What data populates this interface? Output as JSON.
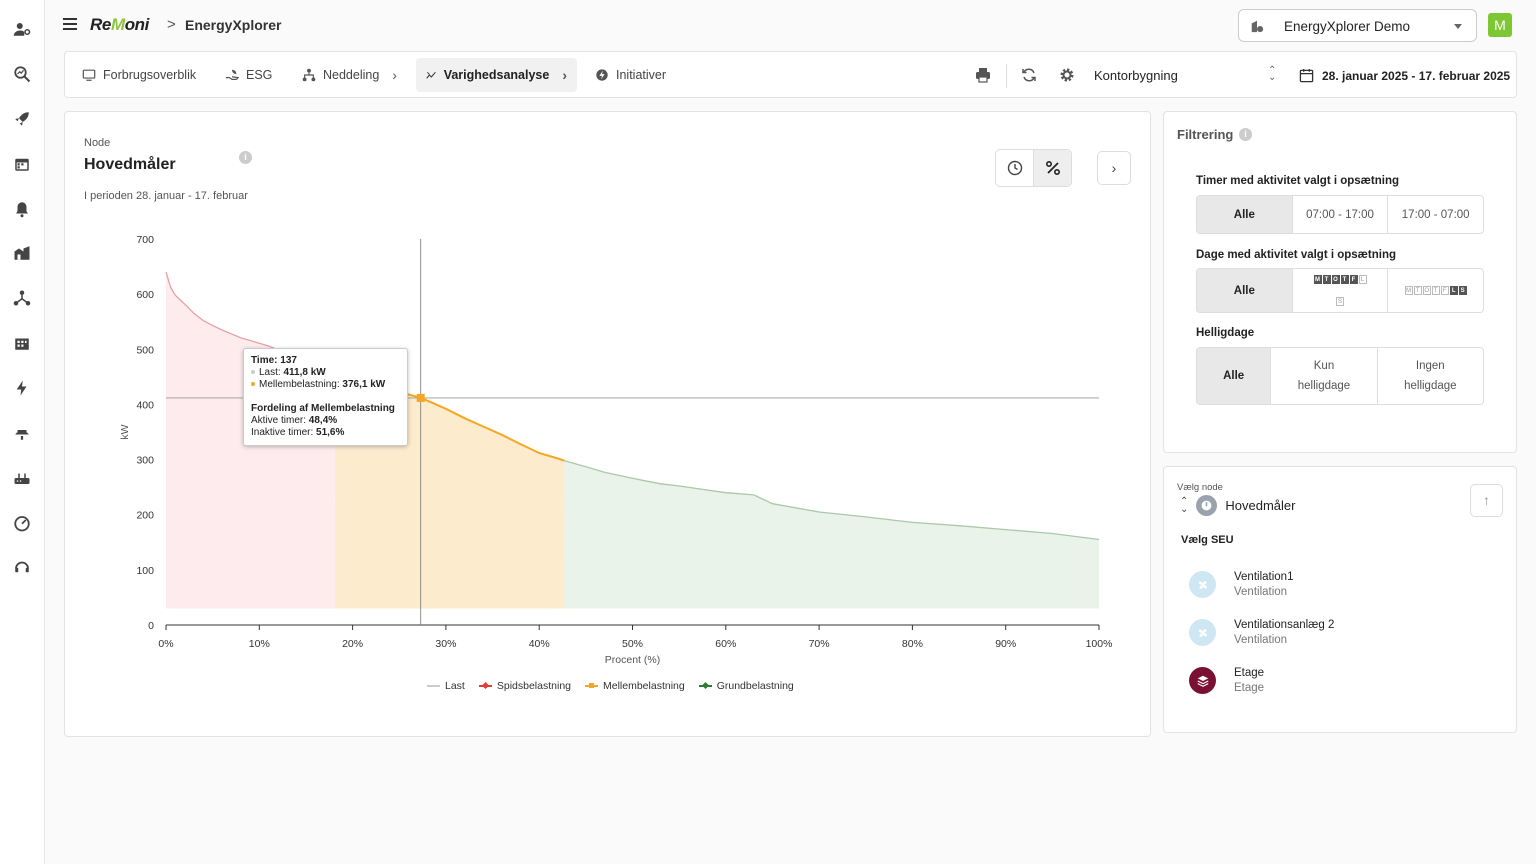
{
  "header": {
    "logo": {
      "part1": "Re",
      "part2": "M",
      "part3": "oni"
    },
    "breadcrumb_separator": ">",
    "app_name": "EnergyXplorer",
    "account_select": "EnergyXplorer Demo",
    "avatar_letter": "M"
  },
  "nav": {
    "tabs": [
      {
        "label": "Forbrugsoverblik",
        "icon": "monitor-icon"
      },
      {
        "label": "ESG",
        "icon": "hand-leaf-icon"
      },
      {
        "label": "Neddeling",
        "icon": "hierarchy-icon"
      },
      {
        "label": "Varighedsanalyse",
        "icon": "duration-chart-icon"
      },
      {
        "label": "Initiativer",
        "icon": "initiative-icon"
      }
    ],
    "building": "Kontorbygning",
    "date_range": "28. januar 2025 - 17. februar 2025"
  },
  "sidebar": {
    "icons": [
      "users-cog-icon",
      "search-analytics-icon",
      "rocket-icon",
      "calendar-icon",
      "bell-icon",
      "buildings-icon",
      "network-icon",
      "building-icon",
      "bolt-icon",
      "water-icon",
      "router-icon",
      "gauge-icon",
      "support-icon"
    ]
  },
  "main": {
    "node_label": "Node",
    "node_title": "Hovedmåler",
    "period": "I perioden 28. januar - 17. februar",
    "tooltip": {
      "time_label": "Time:",
      "time_value": "137",
      "last_label": "Last:",
      "last_value": "411,8 kW",
      "mid_label": "Mellembelastning:",
      "mid_value": "376,1 kW",
      "dist_title": "Fordeling af Mellembelastning",
      "active_label": "Aktive timer:",
      "active_value": "48,4%",
      "inactive_label": "Inaktive timer:",
      "inactive_value": "51,6%"
    }
  },
  "chart_data": {
    "type": "area",
    "xlabel": "Procent (%)",
    "ylabel": "kW",
    "xlim": [
      0,
      100
    ],
    "ylim": [
      0,
      700
    ],
    "x_ticks": [
      "0%",
      "10%",
      "20%",
      "30%",
      "40%",
      "50%",
      "60%",
      "70%",
      "80%",
      "90%",
      "100%"
    ],
    "y_ticks": [
      "0",
      "100",
      "200",
      "300",
      "400",
      "500",
      "600",
      "700"
    ],
    "legend": [
      {
        "name": "Last",
        "color": "#cccccc"
      },
      {
        "name": "Spidsbelastning",
        "color": "#e53935"
      },
      {
        "name": "Mellembelastning",
        "color": "#f5a623"
      },
      {
        "name": "Grundbelastning",
        "color": "#2e7d32"
      }
    ],
    "x": [
      0,
      0.5,
      1,
      2,
      3,
      4,
      5,
      6,
      7,
      8,
      9,
      10,
      11,
      12,
      13,
      14,
      15,
      16,
      17,
      18.1,
      20,
      22,
      24,
      26,
      27.3,
      28,
      30,
      32,
      34,
      36,
      38,
      40,
      42,
      42.7,
      45,
      47,
      50,
      53,
      55,
      60,
      63,
      65,
      70,
      75,
      80,
      85,
      90,
      95,
      100
    ],
    "y": [
      640,
      612,
      598,
      582,
      565,
      552,
      543,
      535,
      528,
      521,
      516,
      511,
      506,
      499,
      492,
      485,
      478,
      470,
      462,
      456,
      447,
      438,
      428,
      418,
      411.8,
      407,
      392,
      375,
      360,
      345,
      328,
      312,
      302,
      298,
      287,
      277,
      266,
      256,
      252,
      240,
      236,
      220,
      205,
      196,
      186,
      180,
      173,
      166,
      155
    ],
    "segments": [
      {
        "name": "Spidsbelastning",
        "x_from": 0,
        "x_to": 18.1
      },
      {
        "name": "Mellembelastning",
        "x_from": 18.1,
        "x_to": 42.7
      },
      {
        "name": "Grundbelastning",
        "x_from": 42.7,
        "x_to": 100
      }
    ],
    "crosshair": {
      "x": 27.3,
      "y": 411.8
    }
  },
  "filter": {
    "title": "Filtrering",
    "hours_label": "Timer med aktivitet valgt i opsætning",
    "hours_options": [
      "Alle",
      "07:00 - 17:00",
      "17:00 - 07:00"
    ],
    "days_label": "Dage med aktivitet valgt i opsætning",
    "days_all": "Alle",
    "weekdays": [
      "M",
      "T",
      "O",
      "T",
      "F",
      "L",
      "S"
    ],
    "holidays_label": "Helligdage",
    "holiday_options": [
      "Alle",
      "Kun helligdage",
      "Ingen helligdage"
    ]
  },
  "node_select": {
    "label": "Vælg node",
    "node": "Hovedmåler",
    "seu_label": "Vælg SEU",
    "seus": [
      {
        "name": "Ventilation1",
        "type": "Ventilation",
        "color": "#cfe7f3"
      },
      {
        "name": "Ventilationsanlæg 2",
        "type": "Ventilation",
        "color": "#cfe7f3"
      },
      {
        "name": "Etage",
        "type": "Etage",
        "color": "#7a1034"
      }
    ]
  }
}
